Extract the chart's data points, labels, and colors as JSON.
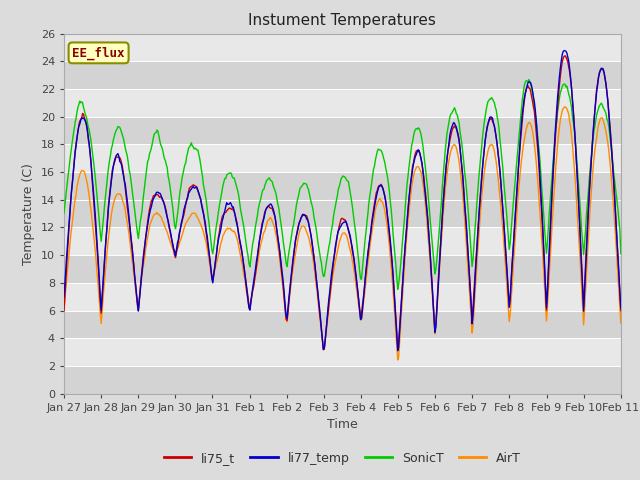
{
  "title": "Instument Temperatures",
  "xlabel": "Time",
  "ylabel": "Temperature (C)",
  "ylim": [
    0,
    26
  ],
  "annotation_text": "EE_flux",
  "annotation_color": "#8B0000",
  "annotation_bg": "#FFFFC0",
  "annotation_border": "#8B8B00",
  "series_colors": {
    "li75_t": "#CC0000",
    "li77_temp": "#0000CC",
    "SonicT": "#00CC00",
    "AirT": "#FF8C00"
  },
  "legend_labels": [
    "li75_t",
    "li77_temp",
    "SonicT",
    "AirT"
  ],
  "x_tick_labels": [
    "Jan 27",
    "Jan 28",
    "Jan 29",
    "Jan 30",
    "Jan 31",
    "Feb 1",
    "Feb 2",
    "Feb 3",
    "Feb 4",
    "Feb 5",
    "Feb 6",
    "Feb 7",
    "Feb 8",
    "Feb 9",
    "Feb 10",
    "Feb 11"
  ],
  "bg_color": "#DCDCDC",
  "plot_bg_light": "#E8E8E8",
  "plot_bg_dark": "#D0D0D0",
  "linewidth": 1.0,
  "title_fontsize": 11,
  "label_fontsize": 9,
  "tick_fontsize": 8,
  "legend_fontsize": 9
}
